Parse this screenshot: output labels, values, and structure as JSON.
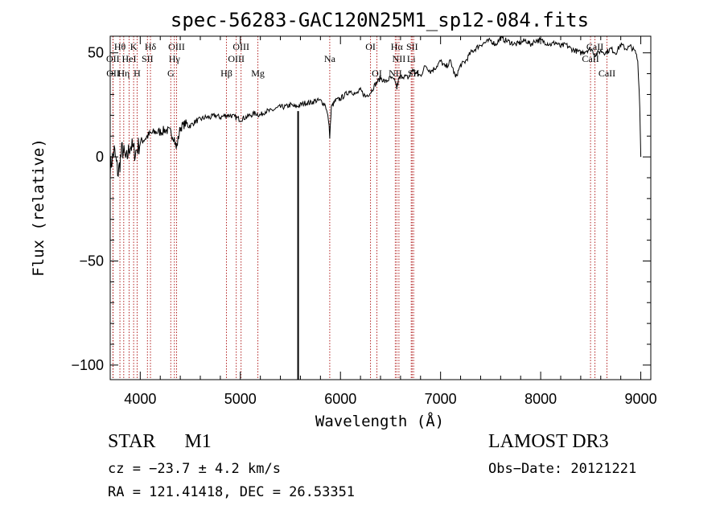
{
  "chart_data": {
    "type": "line",
    "title": "spec-56283-GAC120N25M1_sp12-084.fits",
    "xlabel": "Wavelength (Å)",
    "ylabel": "Flux (relative)",
    "xlim": [
      3700,
      9100
    ],
    "ylim": [
      -107,
      58
    ],
    "xticks": [
      4000,
      5000,
      6000,
      7000,
      8000,
      9000
    ],
    "xtick_labels": [
      "4000",
      "5000",
      "6000",
      "7000",
      "8000",
      "9000"
    ],
    "yticks": [
      -100,
      -50,
      0,
      50
    ],
    "ytick_labels": [
      "−100",
      "−50",
      "0",
      "50"
    ],
    "spectrum": {
      "x": [
        3700,
        3740,
        3780,
        3820,
        3860,
        3900,
        3950,
        4000,
        4050,
        4100,
        4150,
        4200,
        4250,
        4300,
        4340,
        4360,
        4400,
        4450,
        4500,
        4550,
        4600,
        4650,
        4700,
        4750,
        4800,
        4850,
        4900,
        4950,
        5000,
        5050,
        5100,
        5150,
        5200,
        5250,
        5300,
        5350,
        5400,
        5450,
        5500,
        5550,
        5600,
        5650,
        5700,
        5750,
        5800,
        5850,
        5880,
        5893,
        5910,
        5950,
        6000,
        6050,
        6100,
        6150,
        6200,
        6250,
        6300,
        6350,
        6400,
        6450,
        6500,
        6550,
        6563,
        6580,
        6620,
        6680,
        6720,
        6760,
        6800,
        6850,
        6900,
        6950,
        7000,
        7050,
        7100,
        7150,
        7200,
        7250,
        7300,
        7350,
        7400,
        7450,
        7500,
        7550,
        7600,
        7650,
        7700,
        7750,
        7800,
        7850,
        7900,
        7950,
        8000,
        8050,
        8100,
        8150,
        8200,
        8250,
        8300,
        8350,
        8400,
        8450,
        8500,
        8550,
        8600,
        8650,
        8700,
        8750,
        8800,
        8850,
        8900,
        8950,
        8970,
        8990,
        9000
      ],
      "y": [
        -5,
        3,
        -8,
        4,
        -2,
        6,
        2,
        7,
        9,
        11,
        12,
        12,
        13,
        12,
        9,
        4,
        14,
        16,
        15,
        17,
        18,
        19,
        19,
        20,
        19,
        20,
        20,
        19,
        18,
        19,
        20,
        21,
        20,
        22,
        22,
        23,
        24,
        24,
        25,
        24,
        25,
        26,
        26,
        27,
        27,
        25,
        18,
        10,
        24,
        27,
        28,
        30,
        32,
        30,
        32,
        29,
        31,
        35,
        38,
        36,
        38,
        36,
        33,
        37,
        39,
        38,
        42,
        40,
        39,
        44,
        41,
        43,
        46,
        43,
        46,
        38,
        44,
        46,
        50,
        52,
        54,
        55,
        56,
        54,
        57,
        56,
        55,
        54,
        55,
        56,
        54,
        56,
        56,
        55,
        54,
        55,
        53,
        54,
        52,
        51,
        50,
        51,
        52,
        49,
        51,
        50,
        52,
        50,
        54,
        52,
        53,
        50,
        46,
        25,
        0
      ],
      "spike": {
        "x": 5577,
        "y_top": 22,
        "y_bottom": -107
      }
    },
    "lines": [
      {
        "label": "Hθ",
        "x": 3797,
        "row": 1
      },
      {
        "label": "OII",
        "x": 3727,
        "row": 2
      },
      {
        "label": "OII",
        "x": 3729,
        "row": 3
      },
      {
        "label": "Hη",
        "x": 3835,
        "row": 3
      },
      {
        "label": "HeI",
        "x": 3889,
        "row": 2
      },
      {
        "label": "K",
        "x": 3934,
        "row": 1
      },
      {
        "label": "H",
        "x": 3969,
        "row": 3
      },
      {
        "label": "Hδ",
        "x": 4102,
        "row": 1
      },
      {
        "label": "SII",
        "x": 4072,
        "row": 2
      },
      {
        "label": "OIII",
        "x": 4363,
        "row": 1
      },
      {
        "label": "Hγ",
        "x": 4341,
        "row": 2
      },
      {
        "label": "G",
        "x": 4305,
        "row": 3
      },
      {
        "label": "OIII",
        "x": 5007,
        "row": 1
      },
      {
        "label": "OIII",
        "x": 4959,
        "row": 2
      },
      {
        "label": "Hβ",
        "x": 4861,
        "row": 3
      },
      {
        "label": "Mg",
        "x": 5175,
        "row": 3
      },
      {
        "label": "Na",
        "x": 5893,
        "row": 2
      },
      {
        "label": "OI",
        "x": 6300,
        "row": 1
      },
      {
        "label": "OI",
        "x": 6364,
        "row": 3
      },
      {
        "label": "Hα",
        "x": 6563,
        "row": 1
      },
      {
        "label": "SII",
        "x": 6716,
        "row": 1
      },
      {
        "label": "NII",
        "x": 6584,
        "row": 2
      },
      {
        "label": "Li",
        "x": 6707,
        "row": 2
      },
      {
        "label": "NII",
        "x": 6548,
        "row": 3
      },
      {
        "label": "SII",
        "x": 6731,
        "row": 3
      },
      {
        "label": "CaII",
        "x": 8542,
        "row": 1
      },
      {
        "label": "CaII",
        "x": 8498,
        "row": 2
      },
      {
        "label": "CaII",
        "x": 8662,
        "row": 3
      }
    ]
  },
  "info": {
    "class": "STAR",
    "subclass": "M1",
    "survey": "LAMOST DR3",
    "cz": "cz = −23.7 ± 4.2 km/s",
    "obs_date": "Obs−Date: 20121221",
    "radec": "RA = 121.41418, DEC =  26.53351"
  },
  "colors": {
    "line_marker": "#b22222",
    "spectrum": "#000000",
    "axes": "#000000"
  }
}
